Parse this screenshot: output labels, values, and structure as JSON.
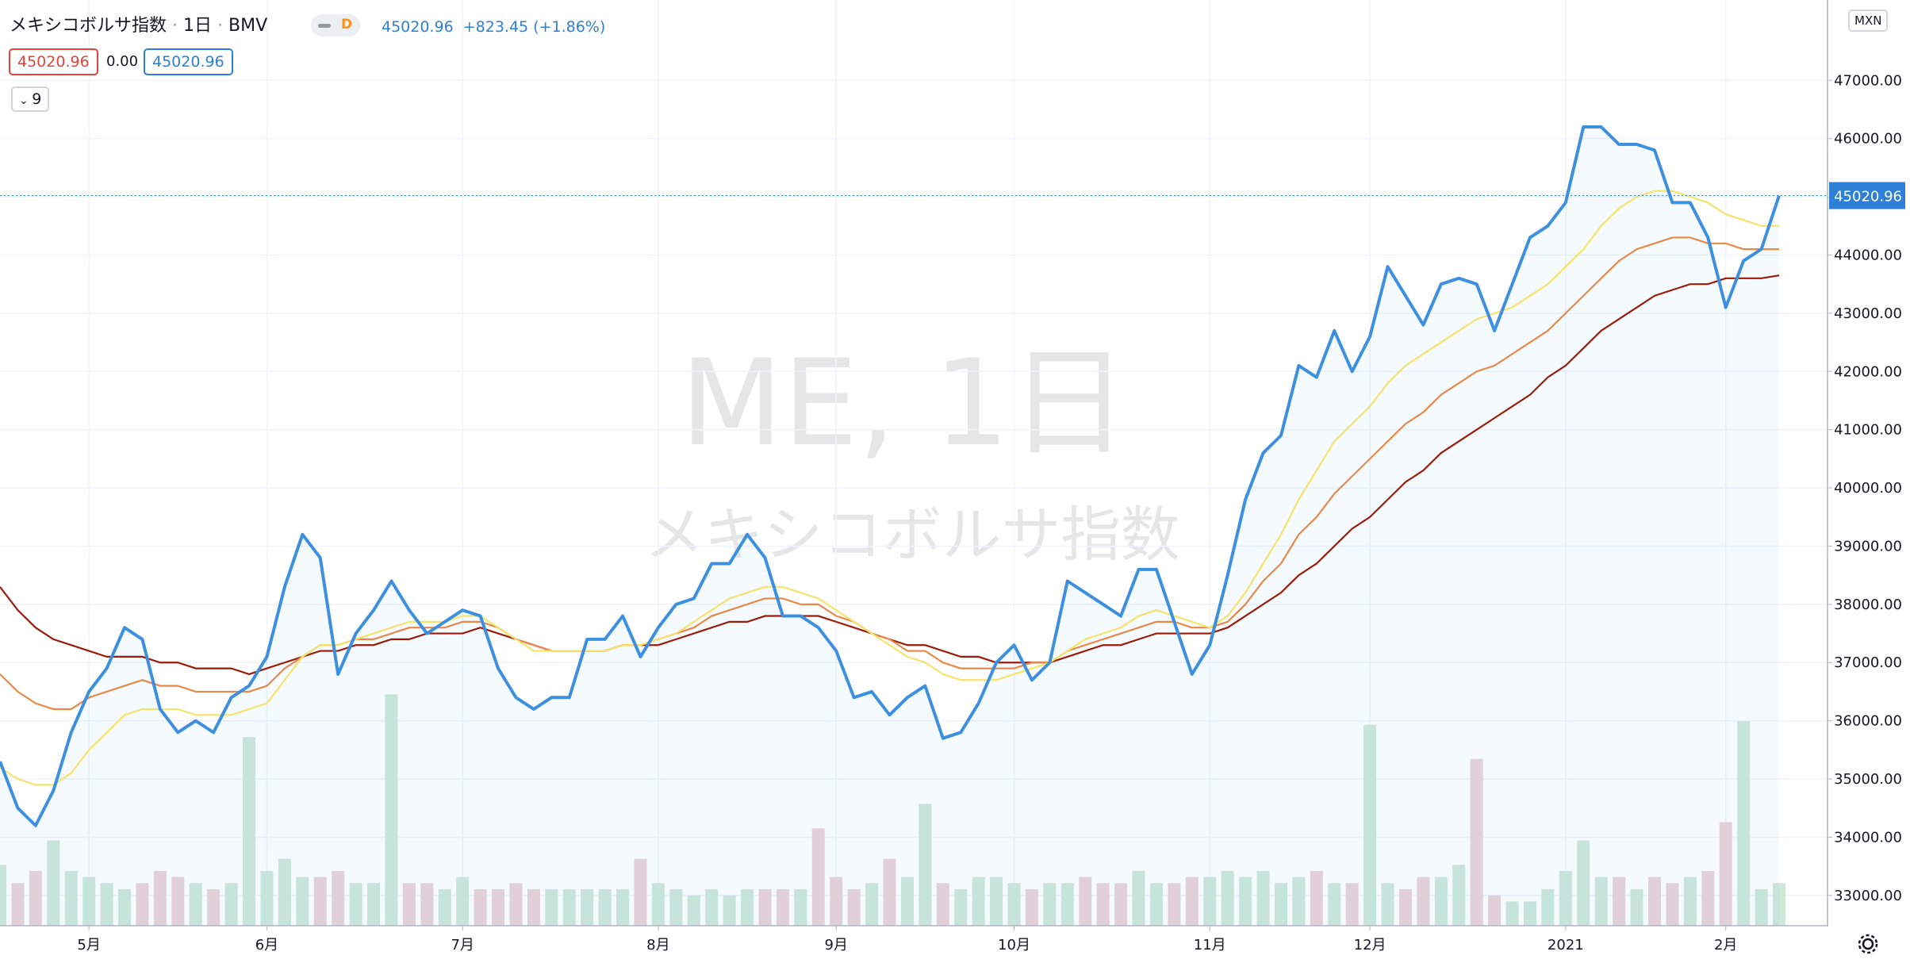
{
  "chart_data": {
    "type": "line",
    "header": {
      "symbol_title": "メキシコボルサ指数",
      "interval": "1日",
      "exchange": "BMV",
      "badge": "D",
      "change": "+823.45 (+1.86%)",
      "open_change": "0.00",
      "indicator_length": 9,
      "currency": "MXN",
      "watermark_symbol": "ME, 1日",
      "watermark_name": "メキシコボルサ指数"
    },
    "categories": [
      null,
      null,
      null,
      null,
      null,
      "5月",
      null,
      null,
      null,
      null,
      null,
      null,
      null,
      null,
      null,
      "6月",
      null,
      null,
      null,
      null,
      null,
      null,
      null,
      null,
      null,
      null,
      "7月",
      null,
      null,
      null,
      null,
      null,
      null,
      null,
      null,
      null,
      null,
      "8月",
      null,
      null,
      null,
      null,
      null,
      null,
      null,
      null,
      null,
      "9月",
      null,
      null,
      null,
      null,
      null,
      null,
      null,
      null,
      null,
      "10月",
      null,
      null,
      null,
      null,
      null,
      null,
      null,
      null,
      null,
      null,
      "11月",
      null,
      null,
      null,
      null,
      null,
      null,
      null,
      null,
      "12月",
      null,
      null,
      null,
      null,
      null,
      null,
      null,
      null,
      null,
      null,
      "2021",
      null,
      null,
      null,
      null,
      null,
      null,
      null,
      null,
      "2月",
      null,
      null,
      null
    ],
    "ylim": [
      32480,
      48380
    ],
    "yticks": [
      {
        "value": 33000,
        "label": "33000.00"
      },
      {
        "value": 34000,
        "label": "34000.00"
      },
      {
        "value": 35000,
        "label": "35000.00"
      },
      {
        "value": 36000,
        "label": "36000.00"
      },
      {
        "value": 37000,
        "label": "37000.00"
      },
      {
        "value": 38000,
        "label": "38000.00"
      },
      {
        "value": 39000,
        "label": "39000.00"
      },
      {
        "value": 40000,
        "label": "40000.00"
      },
      {
        "value": 41000,
        "label": "41000.00"
      },
      {
        "value": 42000,
        "label": "42000.00"
      },
      {
        "value": 43000,
        "label": "43000.00"
      },
      {
        "value": 44000,
        "label": "44000.00"
      },
      {
        "value": 45000,
        "label": "45000.00"
      },
      {
        "value": 46000,
        "label": "46000.00"
      },
      {
        "value": 47000,
        "label": "47000.00"
      }
    ],
    "grid": true,
    "volume_ylim": [
      0,
      200
    ],
    "series": [
      {
        "type": "area",
        "color": "#3d8fe0",
        "values": [
          35300,
          34500,
          34200,
          34800,
          35800,
          36500,
          36900,
          37600,
          37400,
          36200,
          35800,
          36000,
          35800,
          36400,
          36600,
          37100,
          38300,
          39200,
          38800,
          36800,
          37500,
          37900,
          38400,
          37900,
          37500,
          37700,
          37900,
          37800,
          36900,
          36400,
          36200,
          36400,
          36400,
          37400,
          37400,
          37800,
          37100,
          37600,
          38000,
          38100,
          38700,
          38700,
          39200,
          38800,
          37800,
          37800,
          37600,
          37200,
          36400,
          36500,
          36100,
          36400,
          36600,
          35700,
          35800,
          36300,
          37000,
          37300,
          36700,
          37000,
          38400,
          38200,
          38000,
          37800,
          38600,
          38600,
          37700,
          36800,
          37300,
          38500,
          39800,
          40600,
          40900,
          42100,
          41900,
          42700,
          42000,
          42600,
          43800,
          43300,
          42800,
          43500,
          43600,
          43500,
          42700,
          43500,
          44300,
          44500,
          44900,
          46200,
          46200,
          45900,
          45900,
          45800,
          44900,
          44900,
          44300,
          43100,
          43900,
          44100,
          45020.96
        ]
      },
      {
        "type": "line",
        "color": "#9b1c0b",
        "values": [
          38300,
          37900,
          37600,
          37400,
          37300,
          37200,
          37100,
          37100,
          37100,
          37000,
          37000,
          36900,
          36900,
          36900,
          36800,
          36900,
          37000,
          37100,
          37200,
          37200,
          37300,
          37300,
          37400,
          37400,
          37500,
          37500,
          37500,
          37600,
          37500,
          37400,
          37300,
          37200,
          37200,
          37200,
          37200,
          37300,
          37300,
          37300,
          37400,
          37500,
          37600,
          37700,
          37700,
          37800,
          37800,
          37800,
          37800,
          37700,
          37600,
          37500,
          37400,
          37300,
          37300,
          37200,
          37100,
          37100,
          37000,
          37000,
          37000,
          37000,
          37100,
          37200,
          37300,
          37300,
          37400,
          37500,
          37500,
          37500,
          37500,
          37600,
          37800,
          38000,
          38200,
          38500,
          38700,
          39000,
          39300,
          39500,
          39800,
          40100,
          40300,
          40600,
          40800,
          41000,
          41200,
          41400,
          41600,
          41900,
          42100,
          42400,
          42700,
          42900,
          43100,
          43300,
          43400,
          43500,
          43500,
          43600,
          43600,
          43600,
          43650
        ]
      },
      {
        "type": "line",
        "color": "#e8894a",
        "values": [
          36800,
          36500,
          36300,
          36200,
          36200,
          36400,
          36500,
          36600,
          36700,
          36600,
          36600,
          36500,
          36500,
          36500,
          36500,
          36600,
          36900,
          37100,
          37300,
          37300,
          37400,
          37400,
          37500,
          37600,
          37600,
          37600,
          37700,
          37700,
          37600,
          37400,
          37300,
          37200,
          37200,
          37200,
          37200,
          37300,
          37300,
          37400,
          37500,
          37600,
          37800,
          37900,
          38000,
          38100,
          38100,
          38000,
          38000,
          37800,
          37700,
          37500,
          37400,
          37200,
          37200,
          37000,
          36900,
          36900,
          36900,
          36900,
          37000,
          37000,
          37200,
          37300,
          37400,
          37500,
          37600,
          37700,
          37700,
          37600,
          37600,
          37700,
          38000,
          38400,
          38700,
          39200,
          39500,
          39900,
          40200,
          40500,
          40800,
          41100,
          41300,
          41600,
          41800,
          42000,
          42100,
          42300,
          42500,
          42700,
          43000,
          43300,
          43600,
          43900,
          44100,
          44200,
          44300,
          44300,
          44200,
          44200,
          44100,
          44100,
          44100
        ]
      },
      {
        "type": "line",
        "color": "#f5e36b",
        "values": [
          35200,
          35000,
          34900,
          34900,
          35100,
          35500,
          35800,
          36100,
          36200,
          36200,
          36200,
          36100,
          36100,
          36100,
          36200,
          36300,
          36700,
          37100,
          37300,
          37300,
          37400,
          37500,
          37600,
          37700,
          37700,
          37700,
          37800,
          37800,
          37600,
          37400,
          37200,
          37200,
          37200,
          37200,
          37200,
          37300,
          37300,
          37400,
          37500,
          37700,
          37900,
          38100,
          38200,
          38300,
          38300,
          38200,
          38100,
          37900,
          37700,
          37500,
          37300,
          37100,
          37000,
          36800,
          36700,
          36700,
          36700,
          36800,
          36900,
          37000,
          37200,
          37400,
          37500,
          37600,
          37800,
          37900,
          37800,
          37700,
          37600,
          37800,
          38200,
          38700,
          39200,
          39800,
          40300,
          40800,
          41100,
          41400,
          41800,
          42100,
          42300,
          42500,
          42700,
          42900,
          43000,
          43100,
          43300,
          43500,
          43800,
          44100,
          44500,
          44800,
          45000,
          45100,
          45100,
          45000,
          44900,
          44700,
          44600,
          44500,
          44500
        ]
      },
      {
        "type": "bar",
        "axis": "volume",
        "values": [
          50,
          35,
          45,
          70,
          45,
          40,
          35,
          30,
          35,
          45,
          40,
          35,
          30,
          35,
          155,
          45,
          55,
          40,
          40,
          45,
          35,
          35,
          190,
          35,
          35,
          30,
          40,
          30,
          30,
          35,
          30,
          30,
          30,
          30,
          30,
          30,
          55,
          35,
          30,
          25,
          30,
          25,
          30,
          30,
          30,
          30,
          80,
          40,
          30,
          35,
          55,
          40,
          100,
          35,
          30,
          40,
          40,
          35,
          30,
          35,
          35,
          40,
          35,
          35,
          45,
          35,
          35,
          40,
          40,
          45,
          40,
          45,
          35,
          40,
          45,
          35,
          35,
          165,
          35,
          30,
          40,
          40,
          50,
          137,
          25,
          20,
          20,
          30,
          45,
          70,
          40,
          40,
          30,
          40,
          35,
          40,
          45,
          85,
          168,
          30,
          35
        ]
      }
    ]
  }
}
